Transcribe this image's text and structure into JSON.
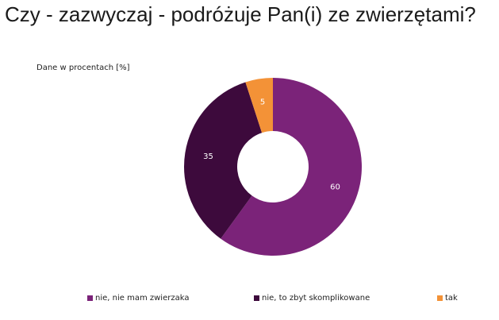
{
  "chart_data": {
    "type": "pie",
    "title": "Czy - zazwyczaj - podróżuje Pan(i) ze zwierzętami?",
    "note": "Dane w procentach [%]",
    "donut": true,
    "categories": [
      "nie, nie mam zwierzaka",
      "nie, to zbyt skomplikowane",
      "tak"
    ],
    "values": [
      60,
      35,
      5
    ],
    "colors": [
      "#7b2379",
      "#3d0a3c",
      "#f39237"
    ],
    "data_labels": [
      "60",
      "35",
      "5"
    ],
    "legend_position": "bottom"
  }
}
